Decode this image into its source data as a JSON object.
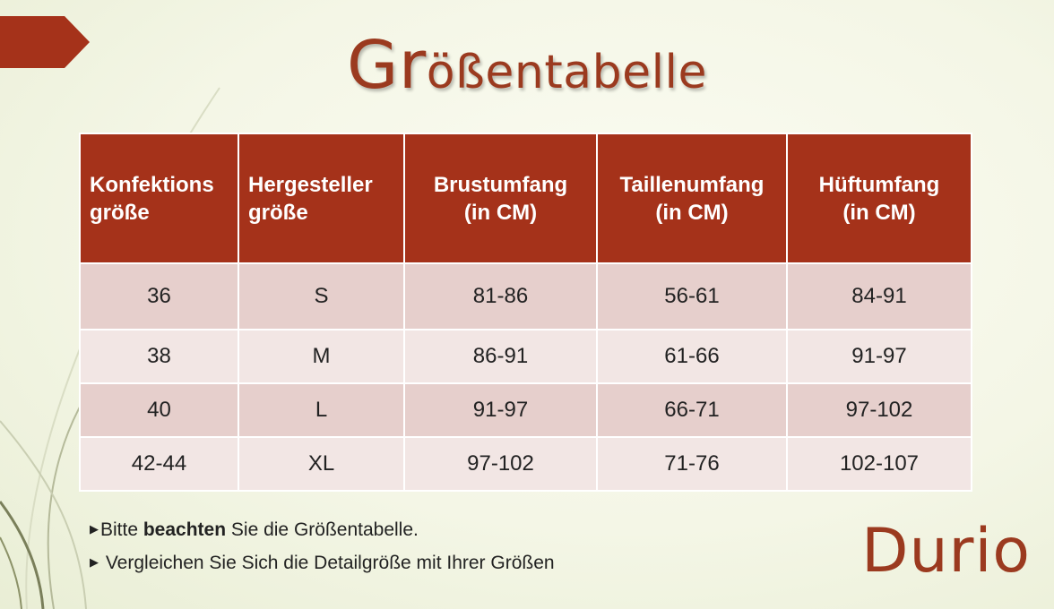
{
  "title": {
    "first": "G",
    "second": "r",
    "rest": "ößentabelle"
  },
  "table": {
    "headers": [
      [
        "Konfektions",
        "größe"
      ],
      [
        "Hergesteller",
        "größe"
      ],
      [
        "Brustumfang",
        "(in CM)"
      ],
      [
        "Taillenumfang",
        "(in CM)"
      ],
      [
        "Hüftumfang",
        "(in CM)"
      ]
    ],
    "rows": [
      [
        "36",
        "S",
        "81-86",
        "56-61",
        "84-91"
      ],
      [
        "38",
        "M",
        "86-91",
        "61-66",
        "91-97"
      ],
      [
        "40",
        "L",
        "91-97",
        "66-71",
        "97-102"
      ],
      [
        "42-44",
        "XL",
        "97-102",
        "71-76",
        "102-107"
      ]
    ]
  },
  "notes": {
    "line1_before": "Bitte ",
    "line1_bold": "beachten",
    "line1_after": " Sie die Größentabelle.",
    "line2": " Vergleichen Sie Sich die Detailgröße mit Ihrer Größen"
  },
  "brand": "Durio",
  "colors": {
    "accent": "#a5321a",
    "row_dark": "#e6cfcc",
    "row_light": "#f2e6e4"
  }
}
